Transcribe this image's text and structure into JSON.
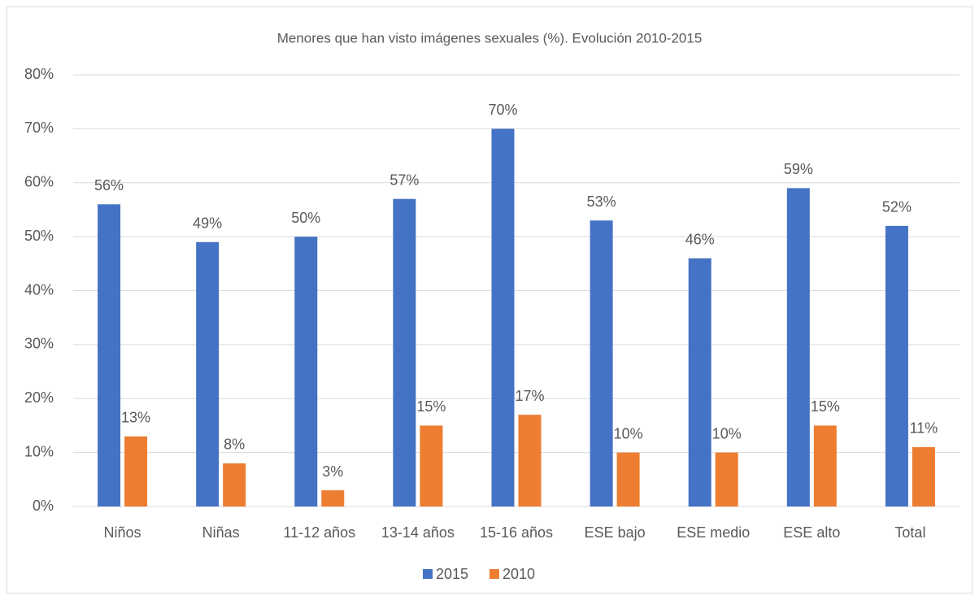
{
  "chart_data": {
    "type": "bar",
    "title": "Menores que han visto imágenes sexuales (%). Evolución 2010-2015",
    "categories": [
      "Niños",
      "Niñas",
      "11-12 años",
      "13-14 años",
      "15-16 años",
      "ESE bajo",
      "ESE medio",
      "ESE alto",
      "Total"
    ],
    "series": [
      {
        "name": "2015",
        "color": "#4472c4",
        "values": [
          56,
          49,
          50,
          57,
          70,
          53,
          46,
          59,
          52
        ],
        "value_labels": [
          "56%",
          "49%",
          "50%",
          "57%",
          "70%",
          "53%",
          "46%",
          "59%",
          "52%"
        ]
      },
      {
        "name": "2010",
        "color": "#ed7d31",
        "values": [
          13,
          8,
          3,
          15,
          17,
          10,
          10,
          15,
          11
        ],
        "value_labels": [
          "13%",
          "8%",
          "3%",
          "15%",
          "17%",
          "10%",
          "10%",
          "15%",
          "11%"
        ]
      }
    ],
    "ylim": [
      0,
      80
    ],
    "yticks": [
      {
        "value": 0,
        "label": "0%"
      },
      {
        "value": 10,
        "label": "10%"
      },
      {
        "value": 20,
        "label": "20%"
      },
      {
        "value": 30,
        "label": "30%"
      },
      {
        "value": 40,
        "label": "40%"
      },
      {
        "value": 50,
        "label": "50%"
      },
      {
        "value": 60,
        "label": "60%"
      },
      {
        "value": 70,
        "label": "70%"
      },
      {
        "value": 80,
        "label": "80%"
      }
    ],
    "grid": true,
    "legend": "bottom"
  }
}
